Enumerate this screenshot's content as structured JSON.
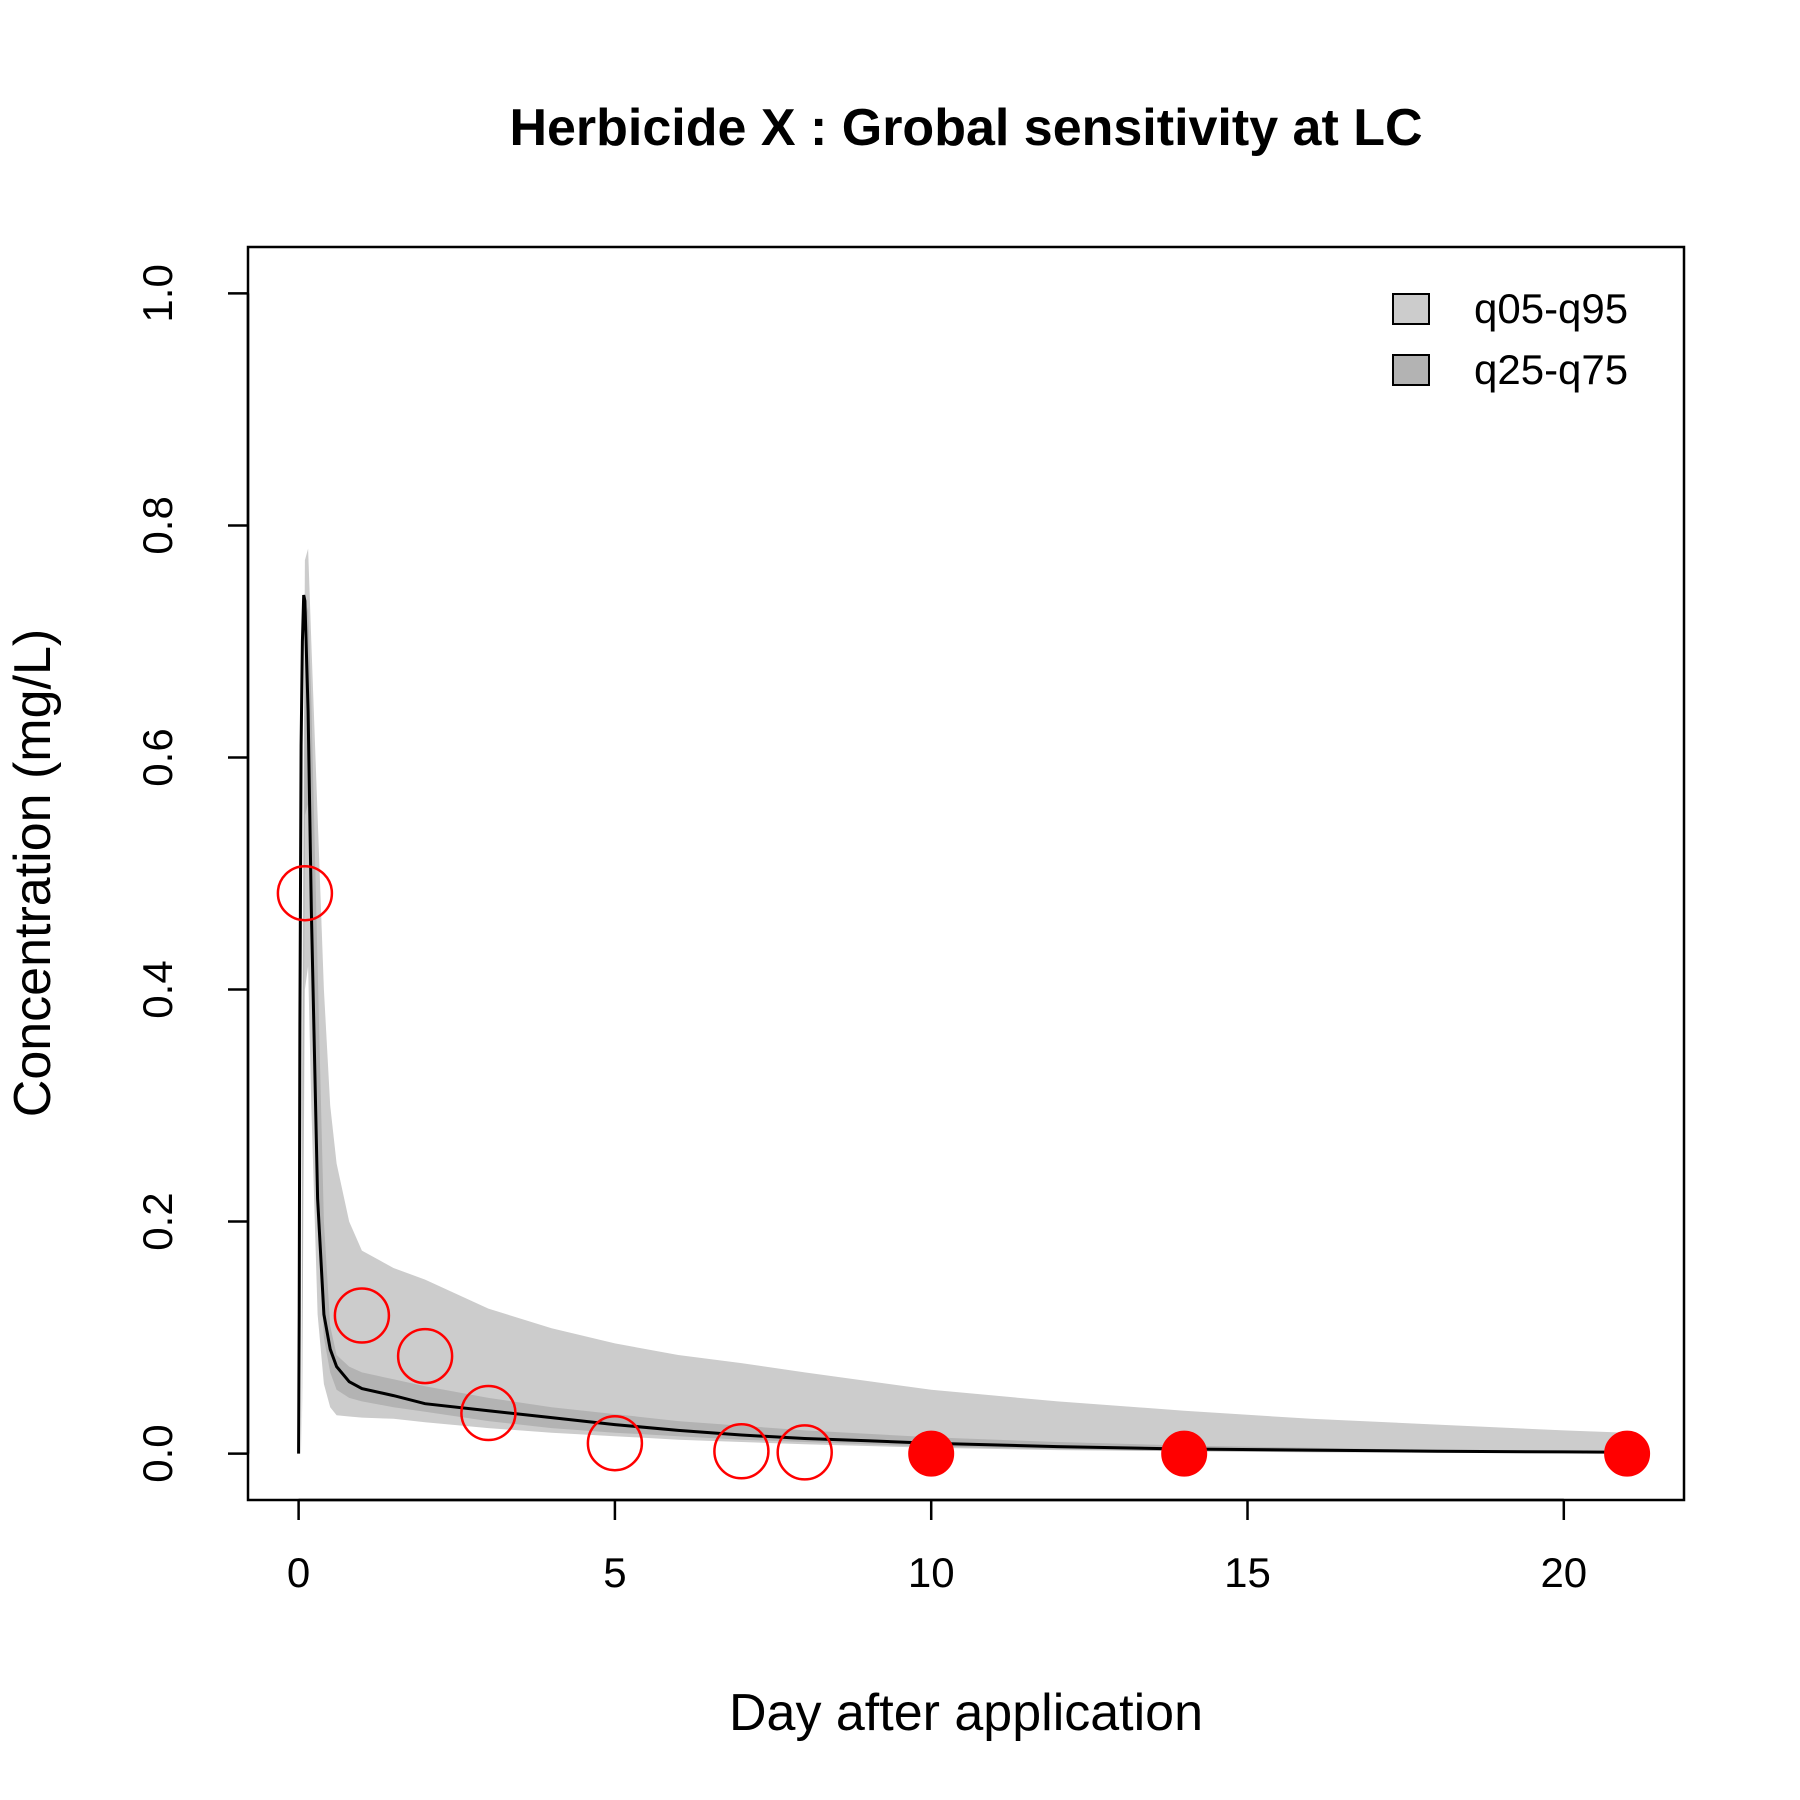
{
  "chart_data": {
    "type": "line",
    "title": "Herbicide X : Grobal sensitivity at  LC",
    "xlabel": "Day after application",
    "ylabel": "Concentration (mg/L)",
    "xlim": [
      -0.8,
      21.9
    ],
    "ylim": [
      -0.04,
      1.04
    ],
    "xticks": [
      0,
      5,
      10,
      15,
      20
    ],
    "xtick_labels": [
      "0",
      "5",
      "10",
      "15",
      "20"
    ],
    "yticks": [
      0.0,
      0.2,
      0.4,
      0.6,
      0.8,
      1.0
    ],
    "ytick_labels": [
      "0.0",
      "0.2",
      "0.4",
      "0.6",
      "0.8",
      "1.0"
    ],
    "grid": false,
    "legend_position": "top-right",
    "legend": [
      {
        "label": "q05-q95",
        "color": "#cccccc"
      },
      {
        "label": "q25-q75",
        "color": "#b3b3b3"
      }
    ],
    "colors": {
      "band_outer": "#cccccc",
      "band_inner": "#b3b3b3",
      "median_line": "#000000",
      "observations": "#ff0000"
    },
    "series": [
      {
        "kind": "band",
        "x": [
          0.05,
          0.1,
          0.15,
          0.2,
          0.3,
          0.4,
          0.5,
          0.6,
          0.8,
          1,
          1.5,
          2,
          3,
          4,
          5,
          6,
          7,
          8,
          10,
          12,
          14,
          16,
          18,
          20,
          21
        ],
        "lower": [
          0.0,
          0.4,
          0.42,
          0.3,
          0.12,
          0.06,
          0.04,
          0.033,
          0.032,
          0.031,
          0.03,
          0.027,
          0.022,
          0.018,
          0.015,
          0.012,
          0.01,
          0.008,
          0.005,
          0.003,
          0.002,
          0.001,
          0.0008,
          0.0005,
          0.0003
        ],
        "upper": [
          0.3,
          0.77,
          0.78,
          0.7,
          0.55,
          0.4,
          0.3,
          0.25,
          0.2,
          0.175,
          0.16,
          0.15,
          0.125,
          0.108,
          0.095,
          0.085,
          0.078,
          0.07,
          0.055,
          0.045,
          0.037,
          0.03,
          0.025,
          0.02,
          0.018
        ]
      },
      {
        "kind": "band",
        "x": [
          0.05,
          0.1,
          0.15,
          0.2,
          0.3,
          0.4,
          0.5,
          0.6,
          0.8,
          1,
          1.5,
          2,
          3,
          4,
          5,
          6,
          7,
          8,
          10,
          12,
          14,
          16,
          18,
          20,
          21
        ],
        "lower": [
          0.0,
          0.55,
          0.56,
          0.45,
          0.2,
          0.1,
          0.07,
          0.055,
          0.048,
          0.045,
          0.04,
          0.036,
          0.028,
          0.022,
          0.018,
          0.015,
          0.012,
          0.01,
          0.006,
          0.004,
          0.002,
          0.0015,
          0.001,
          0.0006,
          0.0004
        ],
        "upper": [
          0.1,
          0.72,
          0.73,
          0.65,
          0.42,
          0.2,
          0.11,
          0.085,
          0.075,
          0.07,
          0.064,
          0.058,
          0.048,
          0.04,
          0.034,
          0.028,
          0.024,
          0.02,
          0.014,
          0.01,
          0.007,
          0.005,
          0.003,
          0.0018,
          0.0012
        ]
      },
      {
        "kind": "line",
        "x": [
          0.0,
          0.01,
          0.02,
          0.04,
          0.06,
          0.08,
          0.1,
          0.15,
          0.2,
          0.3,
          0.4,
          0.5,
          0.6,
          0.8,
          1.0,
          1.5,
          2,
          3,
          4,
          5,
          6,
          7,
          8,
          9,
          10,
          12,
          14,
          16,
          18,
          20,
          21
        ],
        "y": [
          0.0,
          0.12,
          0.37,
          0.61,
          0.7,
          0.74,
          0.735,
          0.64,
          0.47,
          0.22,
          0.12,
          0.09,
          0.075,
          0.062,
          0.056,
          0.05,
          0.043,
          0.037,
          0.031,
          0.025,
          0.02,
          0.016,
          0.013,
          0.011,
          0.009,
          0.006,
          0.004,
          0.003,
          0.002,
          0.0015,
          0.0012
        ]
      }
    ],
    "observations": [
      {
        "x": 0.1,
        "y": 0.483,
        "filled": false
      },
      {
        "x": 1,
        "y": 0.119,
        "filled": false
      },
      {
        "x": 2,
        "y": 0.084,
        "filled": false
      },
      {
        "x": 3,
        "y": 0.035,
        "filled": false
      },
      {
        "x": 5,
        "y": 0.009,
        "filled": false
      },
      {
        "x": 7,
        "y": 0.002,
        "filled": false
      },
      {
        "x": 8,
        "y": 0.001,
        "filled": false
      },
      {
        "x": 10,
        "y": 0.0,
        "filled": true
      },
      {
        "x": 14,
        "y": 0.0,
        "filled": true
      },
      {
        "x": 21,
        "y": 0.0,
        "filled": true
      }
    ]
  }
}
